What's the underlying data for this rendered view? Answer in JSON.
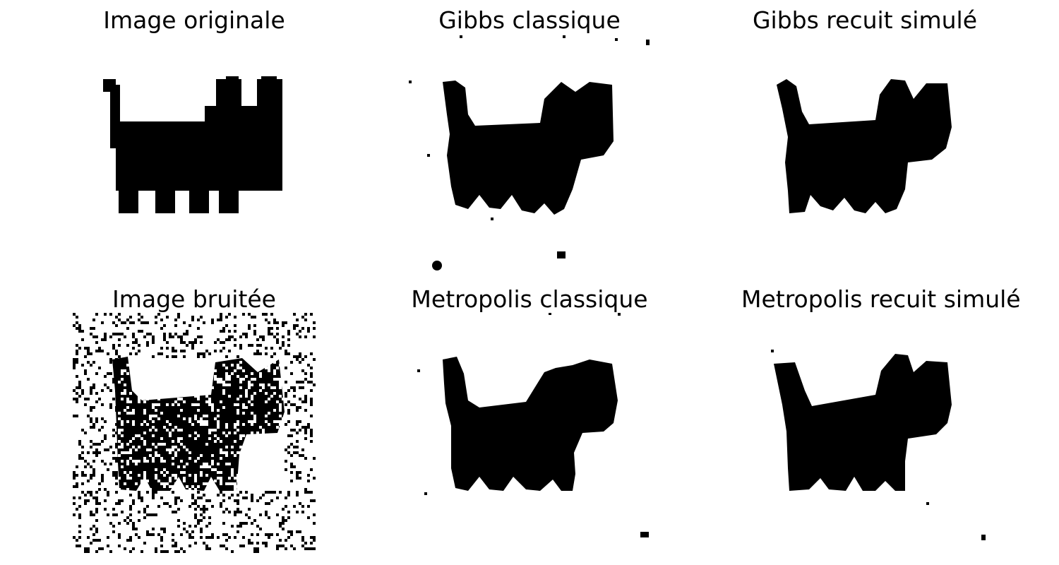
{
  "figure": {
    "background": "#ffffff",
    "ink": "#000000",
    "panels": [
      {
        "id": "original",
        "title": "Image originale"
      },
      {
        "id": "gibbs-classic",
        "title": "Gibbs classique"
      },
      {
        "id": "gibbs-annealing",
        "title": "Gibbs recuit simulé"
      },
      {
        "id": "noisy",
        "title": "Image bruitée"
      },
      {
        "id": "metropolis-classic",
        "title": "Metropolis classique"
      },
      {
        "id": "metropolis-annealing",
        "title": "Metropolis recuit simulé"
      }
    ]
  }
}
